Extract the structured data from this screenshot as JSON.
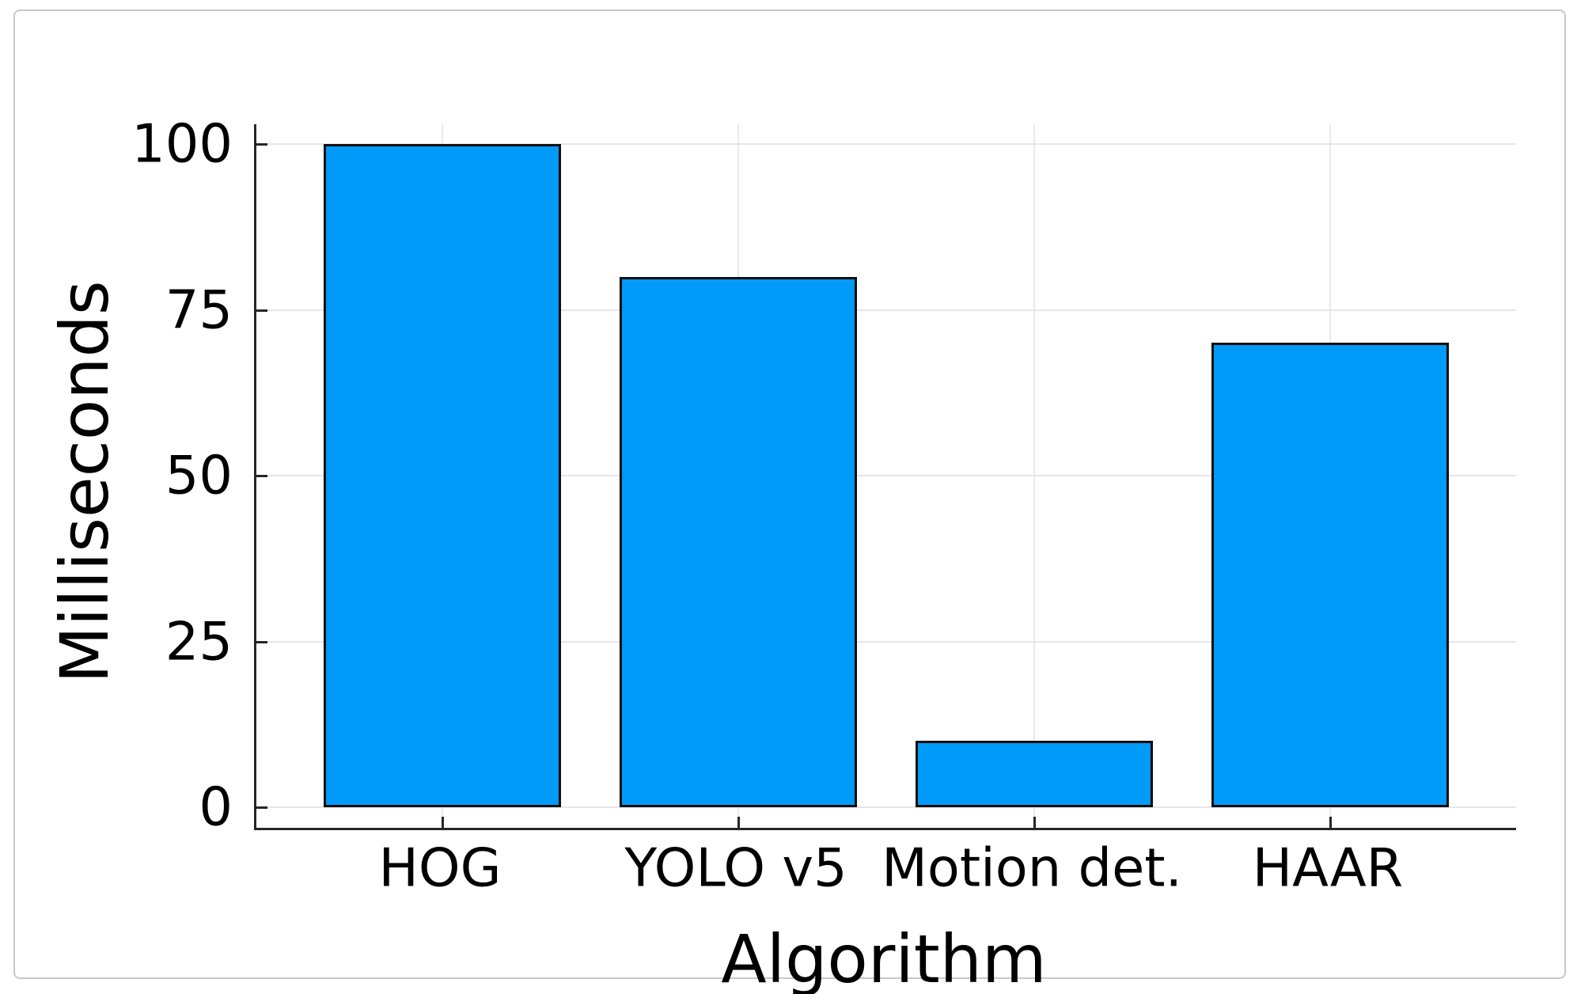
{
  "chart_data": {
    "type": "bar",
    "categories": [
      "HOG",
      "YOLO v5",
      "Motion det.",
      "HAAR"
    ],
    "values": [
      100,
      80,
      10,
      70
    ],
    "title": "",
    "xlabel": "Algorithm",
    "ylabel": "Milliseconds",
    "ylim": [
      0,
      100
    ],
    "yticks": [
      0,
      25,
      50,
      75,
      100
    ],
    "grid": true,
    "legend": "none",
    "colors": {
      "bar_fill": "#009af9",
      "bar_stroke": "#0d0d0d",
      "axis_line": "#262626",
      "gridline": "#e6e6e6",
      "text": "#000000",
      "card_border": "#c8c8c8",
      "background": "#ffffff"
    }
  }
}
